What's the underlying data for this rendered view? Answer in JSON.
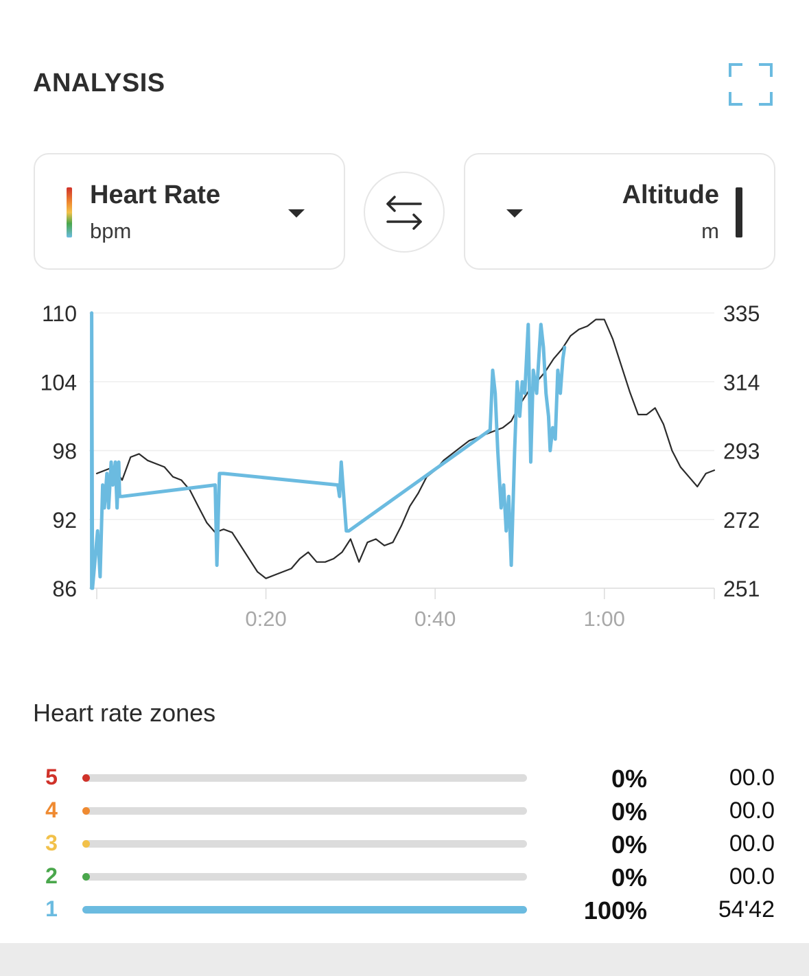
{
  "header": {
    "title": "ANALYSIS",
    "expand_icon": "expand-icon"
  },
  "left_selector": {
    "name": "Heart Rate",
    "unit": "bpm",
    "colors": [
      "#d0322a",
      "#ef8a31",
      "#f2c14a",
      "#4aa74c",
      "#6bbbe0"
    ]
  },
  "right_selector": {
    "name": "Altitude",
    "unit": "m",
    "color": "#2b2b2b"
  },
  "swap_icon": "swap-arrows-icon",
  "chart_data": {
    "type": "line",
    "title": "",
    "x_unit": "minutes",
    "xlim": [
      0,
      73
    ],
    "x_ticks": [
      {
        "value": 20,
        "label": "0:20"
      },
      {
        "value": 40,
        "label": "0:40"
      },
      {
        "value": 60,
        "label": "1:00"
      }
    ],
    "y_left": {
      "label": "bpm",
      "lim": [
        86,
        110
      ],
      "ticks": [
        110,
        104,
        98,
        92,
        86
      ]
    },
    "y_right": {
      "label": "m",
      "lim": [
        251,
        335
      ],
      "ticks": [
        335,
        314,
        293,
        272,
        251
      ]
    },
    "series": [
      {
        "name": "Heart Rate",
        "axis": "left",
        "color": "#6bbbe0",
        "points": [
          [
            -0.6,
            86
          ],
          [
            -0.6,
            110
          ],
          [
            -0.5,
            86
          ],
          [
            0.1,
            91
          ],
          [
            0.4,
            87
          ],
          [
            0.7,
            95
          ],
          [
            0.9,
            93
          ],
          [
            1.2,
            96
          ],
          [
            1.4,
            93
          ],
          [
            1.7,
            97
          ],
          [
            1.9,
            95
          ],
          [
            2.2,
            97
          ],
          [
            2.4,
            93
          ],
          [
            2.6,
            97
          ],
          [
            2.7,
            94
          ],
          [
            3.0,
            94
          ],
          [
            14.0,
            95
          ],
          [
            14.2,
            88
          ],
          [
            14.5,
            96
          ],
          [
            15.0,
            96
          ],
          [
            28.5,
            95
          ],
          [
            28.7,
            94
          ],
          [
            28.9,
            97
          ],
          [
            29.2,
            94
          ],
          [
            29.5,
            91
          ],
          [
            29.8,
            91
          ],
          [
            46.5,
            99.8
          ],
          [
            46.8,
            105
          ],
          [
            47.1,
            103
          ],
          [
            47.4,
            98
          ],
          [
            47.8,
            93
          ],
          [
            48.1,
            95
          ],
          [
            48.4,
            91
          ],
          [
            48.7,
            94
          ],
          [
            49.0,
            88
          ],
          [
            49.4,
            98
          ],
          [
            49.7,
            104
          ],
          [
            50.0,
            101
          ],
          [
            50.3,
            104
          ],
          [
            50.6,
            103
          ],
          [
            51.0,
            109
          ],
          [
            51.3,
            97
          ],
          [
            51.6,
            105
          ],
          [
            52.0,
            103
          ],
          [
            52.5,
            109
          ],
          [
            52.8,
            107
          ],
          [
            53.1,
            103
          ],
          [
            53.4,
            101
          ],
          [
            53.6,
            98
          ],
          [
            53.9,
            100
          ],
          [
            54.2,
            99
          ],
          [
            54.5,
            105
          ],
          [
            54.8,
            103
          ],
          [
            55.1,
            106
          ],
          [
            55.3,
            107
          ]
        ]
      },
      {
        "name": "Altitude",
        "axis": "right",
        "color": "#2b2b2b",
        "points": [
          [
            0,
            286
          ],
          [
            1,
            287
          ],
          [
            2,
            288
          ],
          [
            3,
            284
          ],
          [
            4,
            291
          ],
          [
            5,
            292
          ],
          [
            6,
            290
          ],
          [
            7,
            289
          ],
          [
            8,
            288
          ],
          [
            9,
            285
          ],
          [
            10,
            284
          ],
          [
            11,
            281
          ],
          [
            12,
            276
          ],
          [
            13,
            271
          ],
          [
            14,
            268
          ],
          [
            15,
            269
          ],
          [
            16,
            268
          ],
          [
            17,
            264
          ],
          [
            18,
            260
          ],
          [
            19,
            256
          ],
          [
            20,
            254
          ],
          [
            21,
            255
          ],
          [
            22,
            256
          ],
          [
            23,
            257
          ],
          [
            24,
            260
          ],
          [
            25,
            262
          ],
          [
            26,
            259
          ],
          [
            27,
            259
          ],
          [
            28,
            260
          ],
          [
            29,
            262
          ],
          [
            30,
            266
          ],
          [
            31,
            259
          ],
          [
            32,
            265
          ],
          [
            33,
            266
          ],
          [
            34,
            264
          ],
          [
            35,
            265
          ],
          [
            36,
            270
          ],
          [
            37,
            276
          ],
          [
            38,
            280
          ],
          [
            39,
            285
          ],
          [
            40,
            287
          ],
          [
            41,
            290
          ],
          [
            42,
            292
          ],
          [
            43,
            294
          ],
          [
            44,
            296
          ],
          [
            45,
            297
          ],
          [
            46,
            298
          ],
          [
            47,
            299
          ],
          [
            48,
            300
          ],
          [
            49,
            302
          ],
          [
            50,
            307
          ],
          [
            51,
            311
          ],
          [
            52,
            314
          ],
          [
            53,
            317
          ],
          [
            54,
            321
          ],
          [
            55,
            324
          ],
          [
            56,
            328
          ],
          [
            57,
            330
          ],
          [
            58,
            331
          ],
          [
            59,
            333
          ],
          [
            60,
            333
          ],
          [
            61,
            327
          ],
          [
            62,
            319
          ],
          [
            63,
            311
          ],
          [
            64,
            304
          ],
          [
            65,
            304
          ],
          [
            66,
            306
          ],
          [
            67,
            301
          ],
          [
            68,
            293
          ],
          [
            69,
            288
          ],
          [
            70,
            285
          ],
          [
            71,
            282
          ],
          [
            72,
            286
          ],
          [
            73,
            287
          ]
        ]
      }
    ],
    "grid": true
  },
  "zones": {
    "title": "Heart rate zones",
    "items": [
      {
        "zone": "5",
        "color": "#d0322a",
        "percent": "0%",
        "fraction": 0,
        "time": "00.0"
      },
      {
        "zone": "4",
        "color": "#ef8a31",
        "percent": "0%",
        "fraction": 0,
        "time": "00.0"
      },
      {
        "zone": "3",
        "color": "#f2c14a",
        "percent": "0%",
        "fraction": 0,
        "time": "00.0"
      },
      {
        "zone": "2",
        "color": "#4aa74c",
        "percent": "0%",
        "fraction": 0,
        "time": "00.0"
      },
      {
        "zone": "1",
        "color": "#6bbbe0",
        "percent": "100%",
        "fraction": 1,
        "time": "54'42"
      }
    ]
  }
}
